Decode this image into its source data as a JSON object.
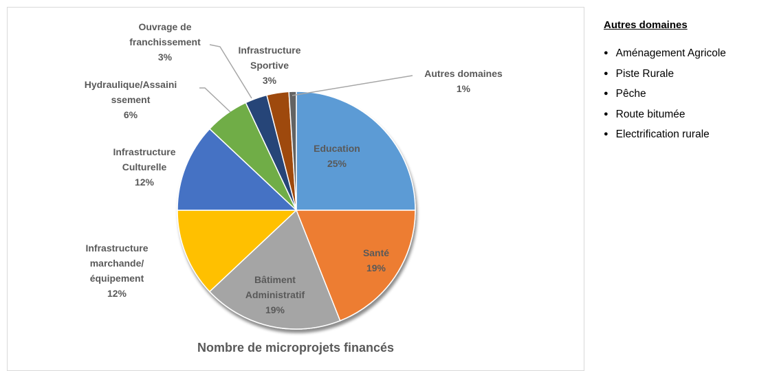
{
  "chart_data": {
    "type": "pie",
    "title": "Nombre de microprojets financés",
    "categories": [
      "Education",
      "Santé",
      "Bâtiment Administratif",
      "Infrastructure marchande/équipement",
      "Infrastructure Culturelle",
      "Hydraulique/Assainissement",
      "Ouvrage de franchissement",
      "Infrastructure Sportive",
      "Autres domaines"
    ],
    "values": [
      25,
      19,
      19,
      12,
      12,
      6,
      3,
      3,
      1
    ],
    "value_labels": [
      "25%",
      "19%",
      "19%",
      "12%",
      "12%",
      "6%",
      "3%",
      "3%",
      "1%"
    ],
    "colors": [
      "#5b9bd5",
      "#ed7d31",
      "#a5a5a5",
      "#ffc000",
      "#4472c4",
      "#70ad47",
      "#264478",
      "#9e480e",
      "#636363"
    ]
  },
  "side_panel": {
    "heading": "Autres domaines",
    "items": [
      "Aménagement Agricole",
      "Piste Rurale",
      "Pêche",
      "Route bitumée",
      "Electrification rurale"
    ]
  }
}
